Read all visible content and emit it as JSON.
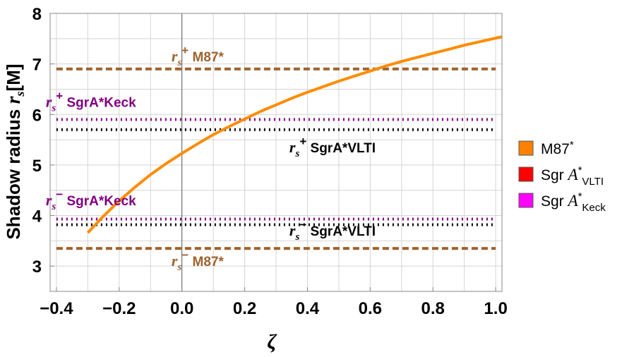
{
  "chart_data": {
    "type": "line",
    "xlabel": "ζ",
    "ylabel": "Shadow radius ",
    "ylabel_symbol": "r",
    "ylabel_subscript": "s",
    "ylabel_unit": "[M]",
    "xlim": [
      -0.42,
      1.02
    ],
    "ylim": [
      2.5,
      8.0
    ],
    "grid": true,
    "x_ticks": [
      -0.4,
      -0.2,
      0.0,
      0.2,
      0.4,
      0.6,
      0.8,
      1.0
    ],
    "x_tick_labels": [
      "−0.4",
      "−0.2",
      "0.0",
      "0.2",
      "0.4",
      "0.6",
      "0.8",
      "1.0"
    ],
    "y_ticks": [
      3,
      4,
      5,
      6,
      7,
      8
    ],
    "y_tick_labels": [
      "3",
      "4",
      "5",
      "6",
      "7",
      "8"
    ],
    "curve": {
      "name": "shadow radius",
      "color": "#ff8c00",
      "x": [
        -0.3,
        -0.25,
        -0.2,
        -0.15,
        -0.1,
        -0.05,
        0.0,
        0.05,
        0.1,
        0.15,
        0.2,
        0.25,
        0.3,
        0.35,
        0.4,
        0.45,
        0.5,
        0.55,
        0.6,
        0.65,
        0.7,
        0.75,
        0.8,
        0.85,
        0.9,
        0.95,
        1.02
      ],
      "y": [
        3.66,
        3.99,
        4.29,
        4.56,
        4.81,
        5.03,
        5.23,
        5.42,
        5.6,
        5.76,
        5.91,
        6.06,
        6.19,
        6.32,
        6.44,
        6.55,
        6.66,
        6.76,
        6.86,
        6.96,
        7.05,
        7.13,
        7.21,
        7.29,
        7.37,
        7.44,
        7.54
      ]
    },
    "bounds": [
      {
        "name": "M87 upper",
        "y": 6.9,
        "color": "#a0622d",
        "style": "dashed",
        "label_sup": "+",
        "label_text": "M87*",
        "label_color": "#a0622d",
        "label_x": 0.05,
        "label_y": 7.05
      },
      {
        "name": "M87 lower",
        "y": 3.35,
        "color": "#a0622d",
        "style": "dashed",
        "label_sup": "−",
        "label_text": "M87*",
        "label_color": "#a0622d",
        "label_x": 0.05,
        "label_y": 3.0
      },
      {
        "name": "Keck upper",
        "y": 5.9,
        "color": "#800080",
        "style": "dotted",
        "label_sup": "+",
        "label_text": "SgrA*Keck",
        "label_color": "#800080",
        "label_x": -0.29,
        "label_y": 6.15
      },
      {
        "name": "VLTI upper",
        "y": 5.7,
        "color": "#000000",
        "style": "dotted",
        "label_sup": "+",
        "label_text": "SgrA*VLTI",
        "label_color": "#000000",
        "label_x": 0.48,
        "label_y": 5.25
      },
      {
        "name": "Keck lower",
        "y": 3.93,
        "color": "#800080",
        "style": "dotted",
        "label_sup": "−",
        "label_text": "SgrA*Keck",
        "label_color": "#800080",
        "label_x": -0.29,
        "label_y": 4.2
      },
      {
        "name": "VLTI lower",
        "y": 3.82,
        "color": "#000000",
        "style": "dotted",
        "label_sup": "−",
        "label_text": "SgrA*VLTI",
        "label_color": "#000000",
        "label_x": 0.48,
        "label_y": 3.6
      }
    ],
    "bounds_xrange": [
      -0.4,
      1.0
    ],
    "legend": {
      "position": "right",
      "entries": [
        {
          "label": "M87*",
          "color": "#ff8000",
          "italic_part": "",
          "subscript": ""
        },
        {
          "label": "Sgr ",
          "color": "#ff0000",
          "italic_part": "A",
          "sup": "*",
          "subscript": "VLTI"
        },
        {
          "label": "Sgr ",
          "color": "#ff00ff",
          "italic_part": "A",
          "sup": "*",
          "subscript": "Keck"
        }
      ]
    }
  }
}
